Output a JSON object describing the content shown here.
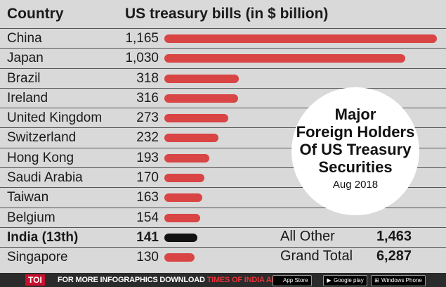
{
  "header": {
    "col_country": "Country",
    "col_value": "US treasury bills (in $ billion)"
  },
  "chart_data": {
    "type": "bar",
    "orientation": "horizontal",
    "categories": [
      "China",
      "Japan",
      "Brazil",
      "Ireland",
      "United Kingdom",
      "Switzerland",
      "Hong Kong",
      "Saudi Arabia",
      "Taiwan",
      "Belgium",
      "India (13th)",
      "Singapore"
    ],
    "value_labels": [
      "1,165",
      "1,030",
      "318",
      "316",
      "273",
      "232",
      "193",
      "170",
      "163",
      "154",
      "141",
      "130"
    ],
    "values": [
      1165,
      1030,
      318,
      316,
      273,
      232,
      193,
      170,
      163,
      154,
      141,
      130
    ],
    "highlight": "India (13th)",
    "colors": {
      "bar": "#d94444",
      "highlight_bar": "#111111"
    }
  },
  "callout": {
    "lines": [
      "Major",
      "Foreign Holders",
      "Of US Treasury",
      "Securities"
    ],
    "date": "Aug 2018"
  },
  "totals": [
    {
      "label": "All Other",
      "value": "1,463"
    },
    {
      "label": "Grand Total",
      "value": "6,287"
    }
  ],
  "footer": {
    "logo": "TOI",
    "promo_prefix": "FOR MORE  INFOGRAPHICS DOWNLOAD ",
    "promo_highlight": "TIMES OF INDIA  APP",
    "stores": [
      {
        "icon": "apple-icon",
        "label": "App Store"
      },
      {
        "icon": "google-play-icon",
        "label": "Google play"
      },
      {
        "icon": "windows-icon",
        "label": "Windows Phone"
      }
    ]
  }
}
